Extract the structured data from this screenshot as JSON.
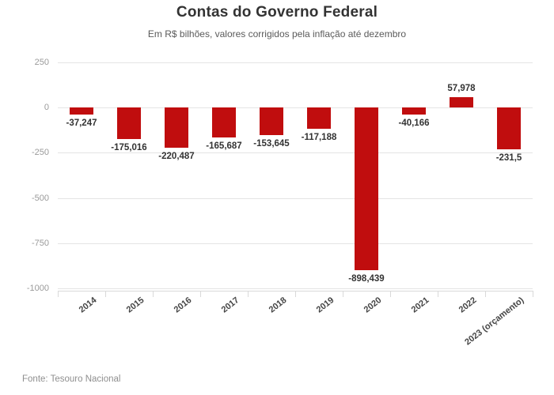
{
  "colors": {
    "title": "#333333",
    "subtitle": "#5a5a5a",
    "source": "#8f8f8f",
    "bar": "#c00d0e",
    "grid": "#e4e4e4",
    "axisline": "#d9d9d9",
    "ylabel": "#9a9a9a",
    "valuelabel": "#333333",
    "xlabel": "#454545"
  },
  "chart_data": {
    "type": "bar",
    "title": "Contas do Governo Federal",
    "subtitle": "Em R$ bilhões, valores corrigidos pela inflação até dezembro",
    "source": "Fonte: Tesouro Nacional",
    "categories": [
      "2014",
      "2015",
      "2016",
      "2017",
      "2018",
      "2019",
      "2020",
      "2021",
      "2022",
      "2023 (orçamento)"
    ],
    "values": [
      -37.247,
      -175.016,
      -220.487,
      -165.687,
      -153.645,
      -117.188,
      -898.439,
      -40.166,
      57.978,
      -231.5
    ],
    "value_labels": [
      "-37,247",
      "-175,016",
      "-220,487",
      "-165,687",
      "-153,645",
      "-117,188",
      "-898,439",
      "-40,166",
      "57,978",
      "-231,5"
    ],
    "y_ticks": [
      250,
      0,
      -250,
      -500,
      -750,
      -1000
    ],
    "y_tick_labels": [
      "250",
      "0",
      "-250",
      "-500",
      "-750",
      "-1000"
    ],
    "xlabel": "",
    "ylabel": "",
    "ylim": [
      -1000,
      250
    ],
    "grid": true,
    "legend": false,
    "bar_color": "#c00d0e"
  }
}
